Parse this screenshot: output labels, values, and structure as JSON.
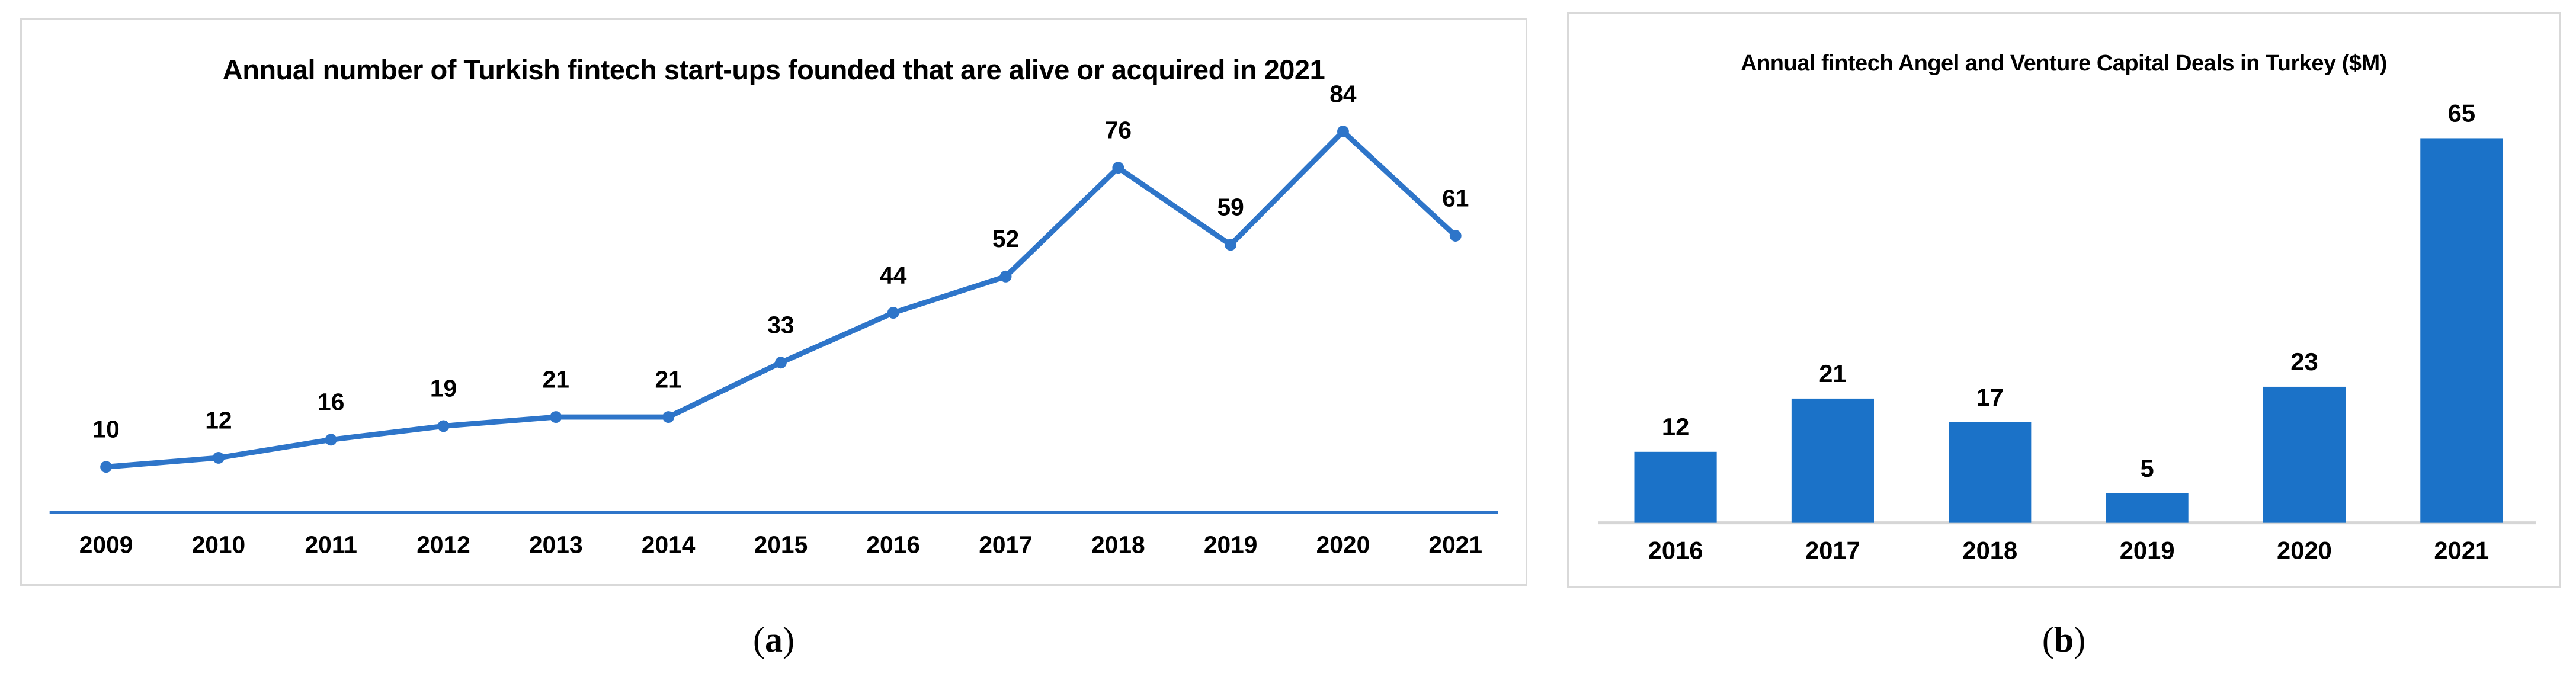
{
  "figure": {
    "captions": {
      "a": {
        "pre": "(",
        "letter": "a",
        "post": ")"
      },
      "b": {
        "pre": "(",
        "letter": "b",
        "post": ")"
      }
    }
  },
  "colors": {
    "line_blue": "#2E75C9",
    "marker_blue": "#2E75C9",
    "line_axis_blue": "#2E75C9",
    "bar_blue": "#1B72C8",
    "bar_axis_gray": "#D6D6D6",
    "panel_border_gray": "#D9D9D9",
    "label_black": "#000000"
  },
  "chart_data": [
    {
      "id": "fintech-startups-line",
      "type": "line",
      "panel": "a",
      "title": "Annual number of Turkish fintech start-ups founded that are alive or acquired in 2021",
      "categories": [
        "2009",
        "2010",
        "2011",
        "2012",
        "2013",
        "2014",
        "2015",
        "2016",
        "2017",
        "2018",
        "2019",
        "2020",
        "2021"
      ],
      "values": [
        10,
        12,
        16,
        19,
        21,
        21,
        33,
        44,
        52,
        76,
        59,
        84,
        61
      ],
      "xlabel": "",
      "ylabel": "",
      "ylim": [
        0,
        90
      ],
      "grid": "off",
      "legend": "none",
      "data_labels": true,
      "markers": "circle"
    },
    {
      "id": "fintech-deals-bar",
      "type": "bar",
      "panel": "b",
      "title": "Annual fintech Angel and Venture Capital Deals in Turkey ($M)",
      "categories": [
        "2016",
        "2017",
        "2018",
        "2019",
        "2020",
        "2021"
      ],
      "values": [
        12,
        21,
        17,
        5,
        23,
        65
      ],
      "xlabel": "",
      "ylabel": "",
      "ylim": [
        0,
        70
      ],
      "grid": "off",
      "legend": "none",
      "data_labels": true
    }
  ]
}
